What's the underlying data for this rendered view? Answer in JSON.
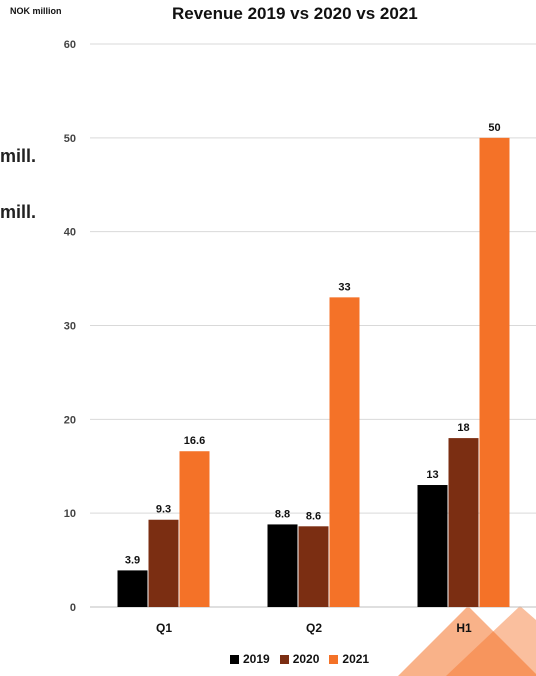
{
  "unit_label": "NOK million",
  "side_text": [
    "mill.",
    "mill."
  ],
  "chart_data": {
    "type": "bar",
    "title": "Revenue 2019 vs 2020 vs 2021",
    "xlabel": "",
    "ylabel": "NOK million",
    "categories": [
      "Q1",
      "Q2",
      "H1"
    ],
    "ylim": [
      0,
      60
    ],
    "yticks": [
      0,
      10,
      20,
      30,
      40,
      50,
      60
    ],
    "grid": true,
    "legend_position": "bottom",
    "series": [
      {
        "name": "2019",
        "values": [
          3.9,
          8.8,
          13
        ],
        "color": "#000000"
      },
      {
        "name": "2020",
        "values": [
          9.3,
          8.6,
          18
        ],
        "color": "#7B2E12"
      },
      {
        "name": "2021",
        "values": [
          16.6,
          33,
          50
        ],
        "color": "#F47228"
      }
    ]
  }
}
